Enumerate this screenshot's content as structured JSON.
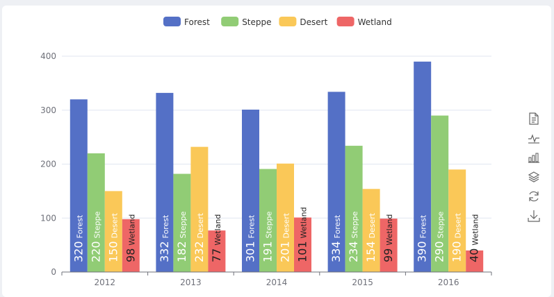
{
  "chart_data": {
    "type": "bar",
    "categories": [
      "2012",
      "2013",
      "2014",
      "2015",
      "2016"
    ],
    "series": [
      {
        "name": "Forest",
        "color": "#5470c6",
        "values": [
          320,
          332,
          301,
          334,
          390
        ]
      },
      {
        "name": "Steppe",
        "color": "#91cc75",
        "values": [
          220,
          182,
          191,
          234,
          290
        ]
      },
      {
        "name": "Desert",
        "color": "#fac858",
        "values": [
          150,
          232,
          201,
          154,
          190
        ]
      },
      {
        "name": "Wetland",
        "color": "#ee6666",
        "values": [
          98,
          77,
          101,
          99,
          40
        ]
      }
    ],
    "ylim": [
      0,
      400
    ],
    "yticks": [
      0,
      100,
      200,
      300,
      400
    ],
    "legend_position": "top-center",
    "grid": "horizontal",
    "bar_labels": "value and series name, rotated vertical inside bar bottom"
  },
  "toolbox": [
    {
      "icon": "data-view-icon"
    },
    {
      "icon": "line-chart-icon"
    },
    {
      "icon": "bar-chart-icon"
    },
    {
      "icon": "stack-icon"
    },
    {
      "icon": "restore-icon"
    },
    {
      "icon": "save-image-icon"
    }
  ]
}
